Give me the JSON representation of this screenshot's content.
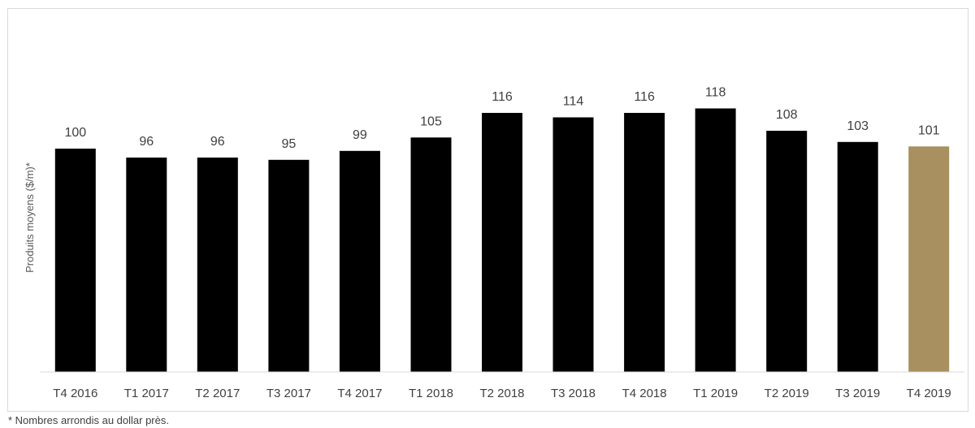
{
  "chart_data": {
    "type": "bar",
    "categories": [
      "T4 2016",
      "T1 2017",
      "T2 2017",
      "T3 2017",
      "T4 2017",
      "T1 2018",
      "T2 2018",
      "T3 2018",
      "T4 2018",
      "T1 2019",
      "T2 2019",
      "T3 2019",
      "T4 2019"
    ],
    "values": [
      100,
      96,
      96,
      95,
      99,
      105,
      116,
      114,
      116,
      118,
      108,
      103,
      101
    ],
    "data_labels": [
      "100",
      "96",
      "96",
      "95",
      "99",
      "105",
      "116",
      "114",
      "116",
      "118",
      "108",
      "103",
      "101"
    ],
    "title": "",
    "xlabel": "",
    "ylabel": "Produits moyens ($/m)*",
    "ylim": [
      0,
      140
    ],
    "grid": false,
    "legend": "none",
    "colors": {
      "default": "#000000",
      "highlight": "#A89060",
      "highlight_index": 12
    }
  },
  "footnote": "* Nombres arrondis au dollar près."
}
